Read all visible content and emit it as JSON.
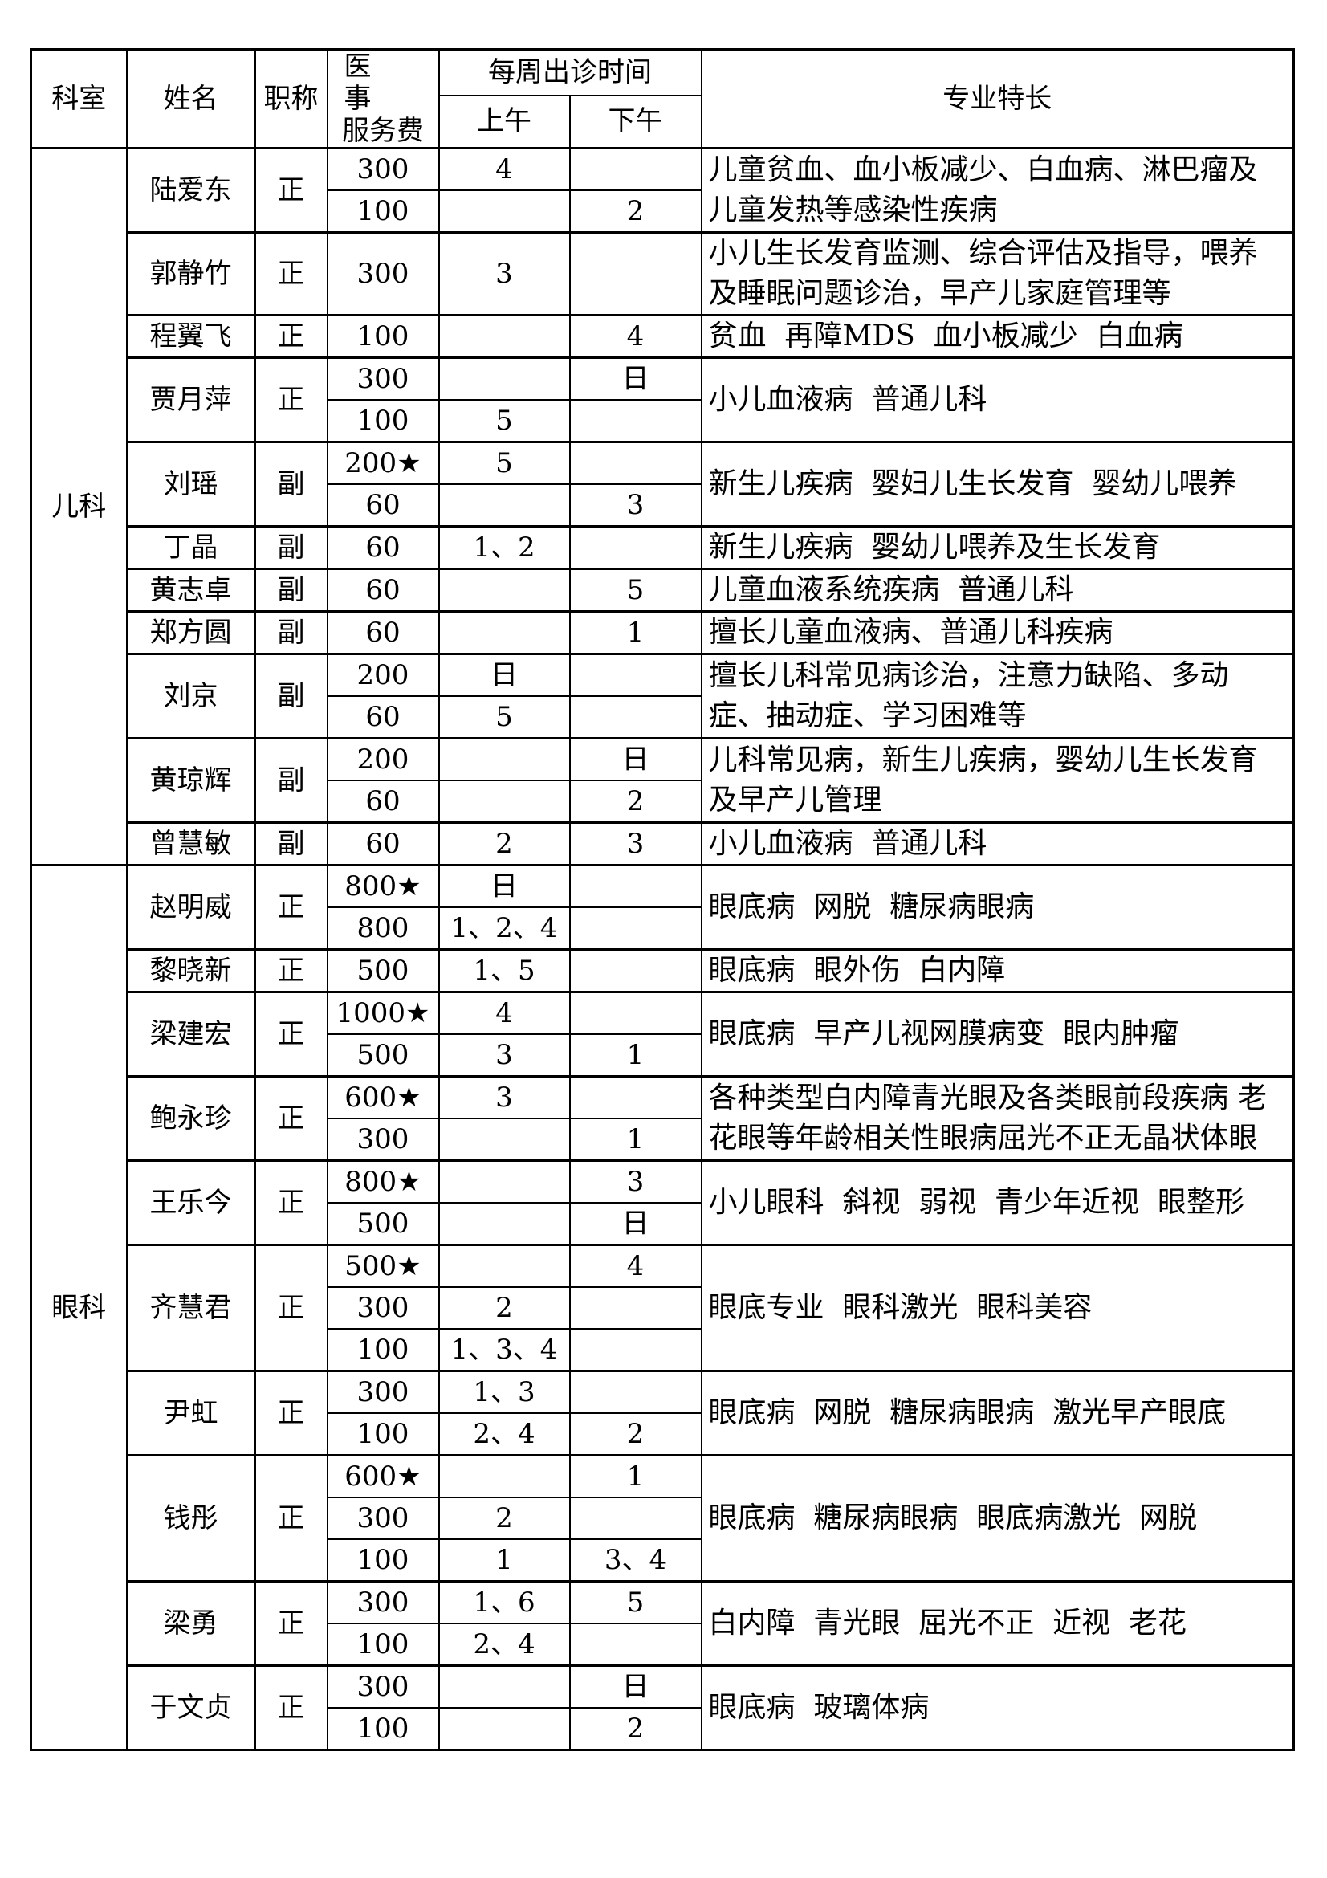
{
  "header": {
    "dept": "科室",
    "name": "姓名",
    "title": "职称",
    "fee_line1": "医　事",
    "fee_line2": "服务费",
    "weekly": "每周出诊时间",
    "am": "上午",
    "pm": "下午",
    "specialty": "专业特长"
  },
  "departments": [
    {
      "name": "儿科",
      "doctors": [
        {
          "name": "陆爱东",
          "title": "正",
          "sessions": [
            {
              "fee": "300",
              "am": "4",
              "pm": ""
            },
            {
              "fee": "100",
              "am": "",
              "pm": "2"
            }
          ],
          "specialty": "儿童贫血、血小板减少、白血病、淋巴瘤及儿童发热等感染性疾病"
        },
        {
          "name": "郭静竹",
          "title": "正",
          "sessions": [
            {
              "fee": "300",
              "am": "3",
              "pm": ""
            }
          ],
          "specialty": "小儿生长发育监测、综合评估及指导，喂养及睡眠问题诊治，早产儿家庭管理等"
        },
        {
          "name": "程翼飞",
          "title": "正",
          "sessions": [
            {
              "fee": "100",
              "am": "",
              "pm": "4"
            }
          ],
          "specialty": "贫血  再障MDS  血小板减少  白血病"
        },
        {
          "name": "贾月萍",
          "title": "正",
          "sessions": [
            {
              "fee": "300",
              "am": "",
              "pm": "日"
            },
            {
              "fee": "100",
              "am": "5",
              "pm": ""
            }
          ],
          "specialty": "小儿血液病  普通儿科"
        },
        {
          "name": "刘瑶",
          "title": "副",
          "sessions": [
            {
              "fee": "200★",
              "am": "5",
              "pm": ""
            },
            {
              "fee": "60",
              "am": "",
              "pm": "3"
            }
          ],
          "specialty": "新生儿疾病  婴妇儿生长发育  婴幼儿喂养"
        },
        {
          "name": "丁晶",
          "title": "副",
          "sessions": [
            {
              "fee": "60",
              "am": "1、2",
              "pm": ""
            }
          ],
          "specialty": "新生儿疾病  婴幼儿喂养及生长发育"
        },
        {
          "name": "黄志卓",
          "title": "副",
          "sessions": [
            {
              "fee": "60",
              "am": "",
              "pm": "5"
            }
          ],
          "specialty": "儿童血液系统疾病  普通儿科"
        },
        {
          "name": "郑方圆",
          "title": "副",
          "sessions": [
            {
              "fee": "60",
              "am": "",
              "pm": "1"
            }
          ],
          "specialty": "擅长儿童血液病、普通儿科疾病"
        },
        {
          "name": "刘京",
          "title": "副",
          "sessions": [
            {
              "fee": "200",
              "am": "日",
              "pm": ""
            },
            {
              "fee": "60",
              "am": "5",
              "pm": ""
            }
          ],
          "specialty": "擅长儿科常见病诊治，注意力缺陷、多动症、抽动症、学习困难等"
        },
        {
          "name": "黄琼辉",
          "title": "副",
          "sessions": [
            {
              "fee": "200",
              "am": "",
              "pm": "日"
            },
            {
              "fee": "60",
              "am": "",
              "pm": "2"
            }
          ],
          "specialty": "儿科常见病，新生儿疾病，婴幼儿生长发育及早产儿管理"
        },
        {
          "name": "曾慧敏",
          "title": "副",
          "sessions": [
            {
              "fee": "60",
              "am": "2",
              "pm": "3"
            }
          ],
          "specialty": "小儿血液病  普通儿科"
        }
      ]
    },
    {
      "name": "眼科",
      "doctors": [
        {
          "name": "赵明威",
          "title": "正",
          "sessions": [
            {
              "fee": "800★",
              "am": "日",
              "pm": ""
            },
            {
              "fee": "800",
              "am": "1、2、4",
              "pm": ""
            }
          ],
          "specialty": "眼底病  网脱  糖尿病眼病"
        },
        {
          "name": "黎晓新",
          "title": "正",
          "sessions": [
            {
              "fee": "500",
              "am": "1、5",
              "pm": ""
            }
          ],
          "specialty": "眼底病  眼外伤  白内障"
        },
        {
          "name": "梁建宏",
          "title": "正",
          "sessions": [
            {
              "fee": "1000★",
              "am": "4",
              "pm": ""
            },
            {
              "fee": "500",
              "am": "3",
              "pm": "1"
            }
          ],
          "specialty": "眼底病  早产儿视网膜病变  眼内肿瘤"
        },
        {
          "name": "鲍永珍",
          "title": "正",
          "sessions": [
            {
              "fee": "600★",
              "am": "3",
              "pm": ""
            },
            {
              "fee": "300",
              "am": "",
              "pm": "1"
            }
          ],
          "specialty": "各种类型白内障青光眼及各类眼前段疾病 老花眼等年龄相关性眼病屈光不正无晶状体眼"
        },
        {
          "name": "王乐今",
          "title": "正",
          "sessions": [
            {
              "fee": "800★",
              "am": "",
              "pm": "3"
            },
            {
              "fee": "500",
              "am": "",
              "pm": "日"
            }
          ],
          "specialty": "小儿眼科  斜视  弱视  青少年近视  眼整形"
        },
        {
          "name": "齐慧君",
          "title": "正",
          "sessions": [
            {
              "fee": "500★",
              "am": "",
              "pm": "4"
            },
            {
              "fee": "300",
              "am": "2",
              "pm": ""
            },
            {
              "fee": "100",
              "am": "1、3、4",
              "pm": ""
            }
          ],
          "specialty": "眼底专业  眼科激光  眼科美容"
        },
        {
          "name": "尹虹",
          "title": "正",
          "sessions": [
            {
              "fee": "300",
              "am": "1、3",
              "pm": ""
            },
            {
              "fee": "100",
              "am": "2、4",
              "pm": "2"
            }
          ],
          "specialty": "眼底病  网脱  糖尿病眼病  激光早产眼底"
        },
        {
          "name": "钱彤",
          "title": "正",
          "sessions": [
            {
              "fee": "600★",
              "am": "",
              "pm": "1"
            },
            {
              "fee": "300",
              "am": "2",
              "pm": ""
            },
            {
              "fee": "100",
              "am": "1",
              "pm": "3、4"
            }
          ],
          "specialty": "眼底病  糖尿病眼病  眼底病激光  网脱"
        },
        {
          "name": "梁勇",
          "title": "正",
          "sessions": [
            {
              "fee": "300",
              "am": "1、6",
              "pm": "5"
            },
            {
              "fee": "100",
              "am": "2、4",
              "pm": ""
            }
          ],
          "specialty": "白内障  青光眼  屈光不正  近视  老花"
        },
        {
          "name": "于文贞",
          "title": "正",
          "sessions": [
            {
              "fee": "300",
              "am": "",
              "pm": "日"
            },
            {
              "fee": "100",
              "am": "",
              "pm": "2"
            }
          ],
          "specialty": "眼底病  玻璃体病"
        }
      ]
    }
  ]
}
